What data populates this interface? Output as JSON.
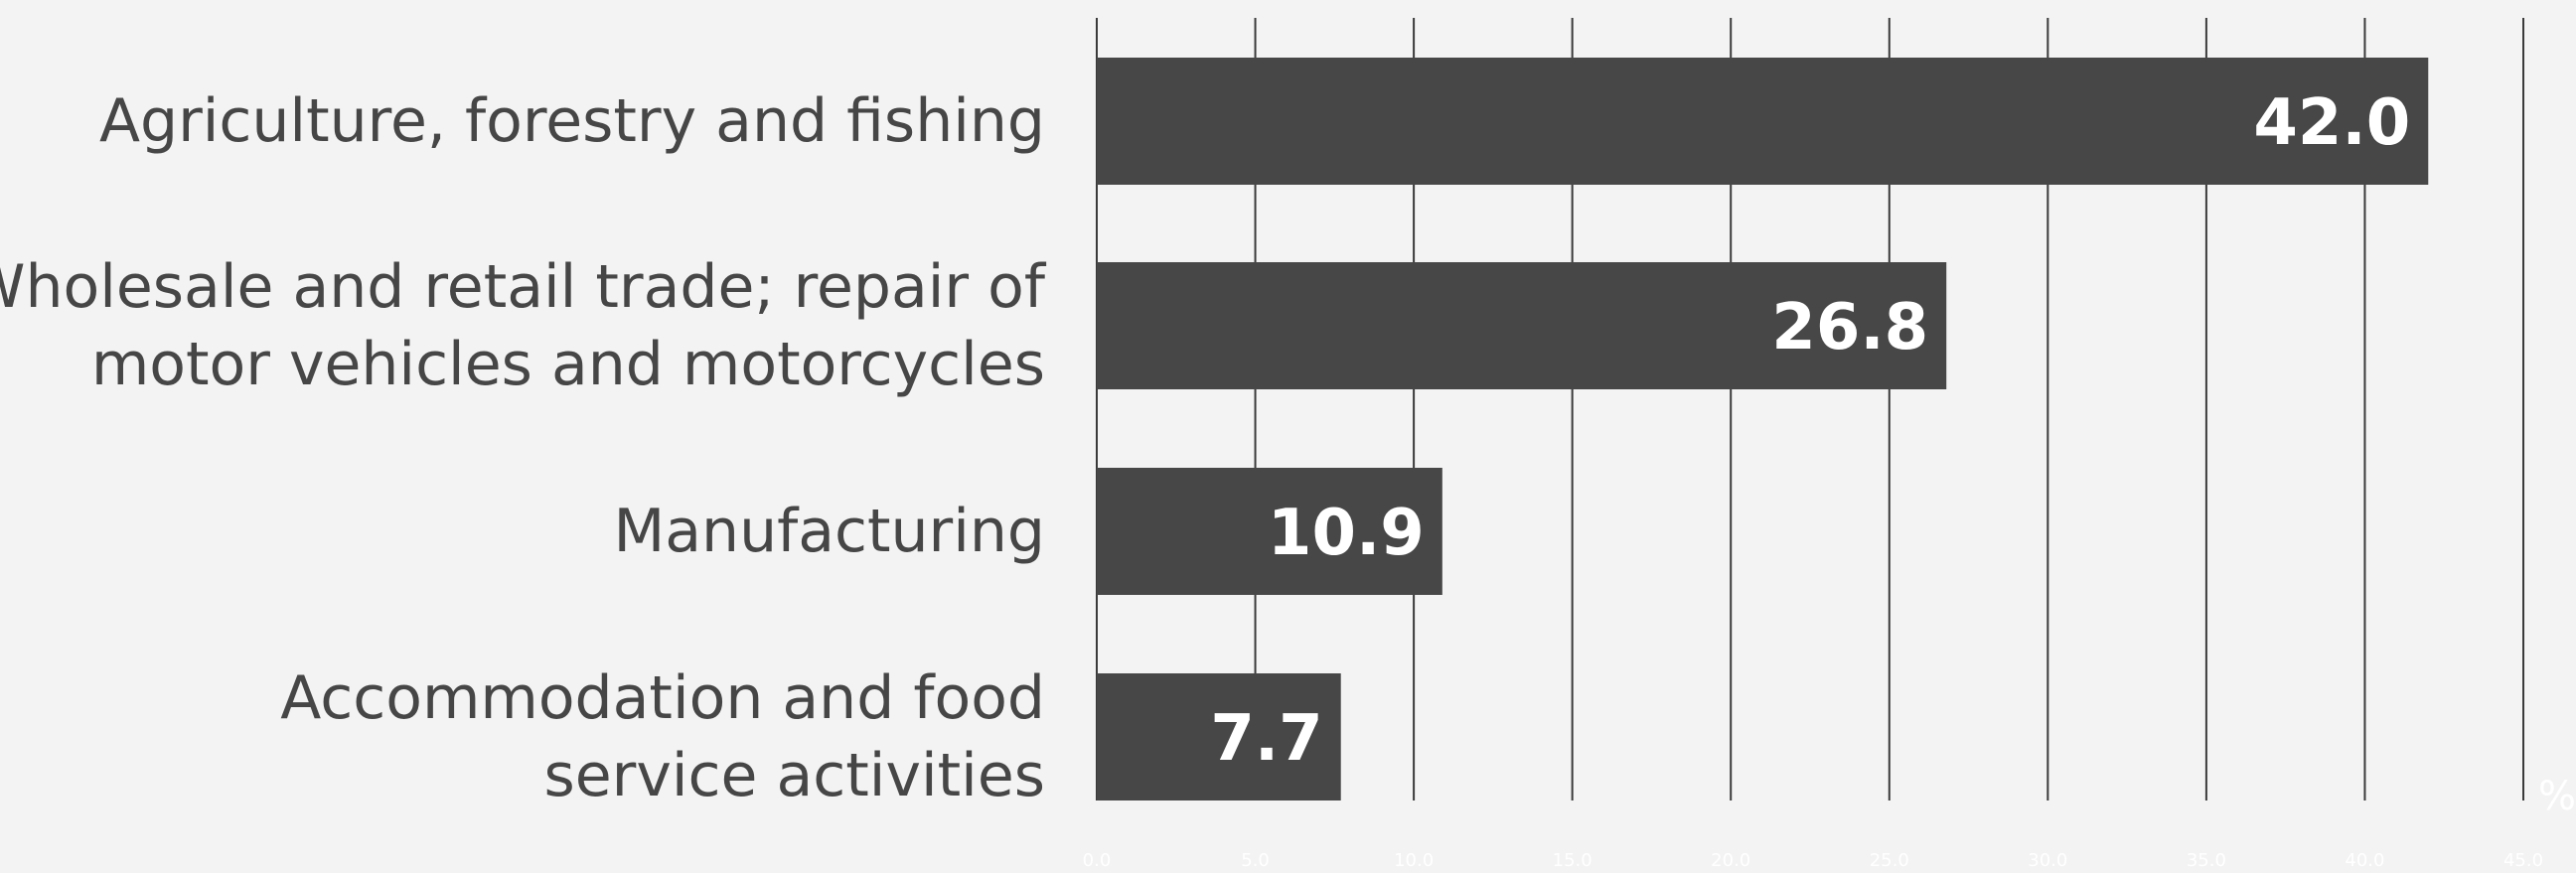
{
  "chart_data": {
    "type": "bar",
    "orientation": "horizontal",
    "categories": [
      [
        "Agriculture, forestry and fishing"
      ],
      [
        "Wholesale and retail trade; repair of",
        "motor vehicles and motorcycles"
      ],
      [
        "Manufacturing"
      ],
      [
        "Accommodation and food",
        "service activities"
      ]
    ],
    "values": [
      42.0,
      26.8,
      10.9,
      7.7
    ],
    "data_labels": [
      "42.0",
      "26.8",
      "10.9",
      "7.7"
    ],
    "xlim": [
      0,
      45
    ],
    "x_ticks": [
      "0.0",
      "5.0",
      "10.0",
      "15.0",
      "20.0",
      "25.0",
      "30.0",
      "35.0",
      "40.0",
      "45.0"
    ],
    "unit": "%",
    "grid": true,
    "colors": {
      "bar": "#474747",
      "background": "#f3f3f3",
      "gridline": "#3a3a3a",
      "category_text": "#464646",
      "data_label": "#ffffff",
      "tick_text": "#ffffff"
    }
  }
}
